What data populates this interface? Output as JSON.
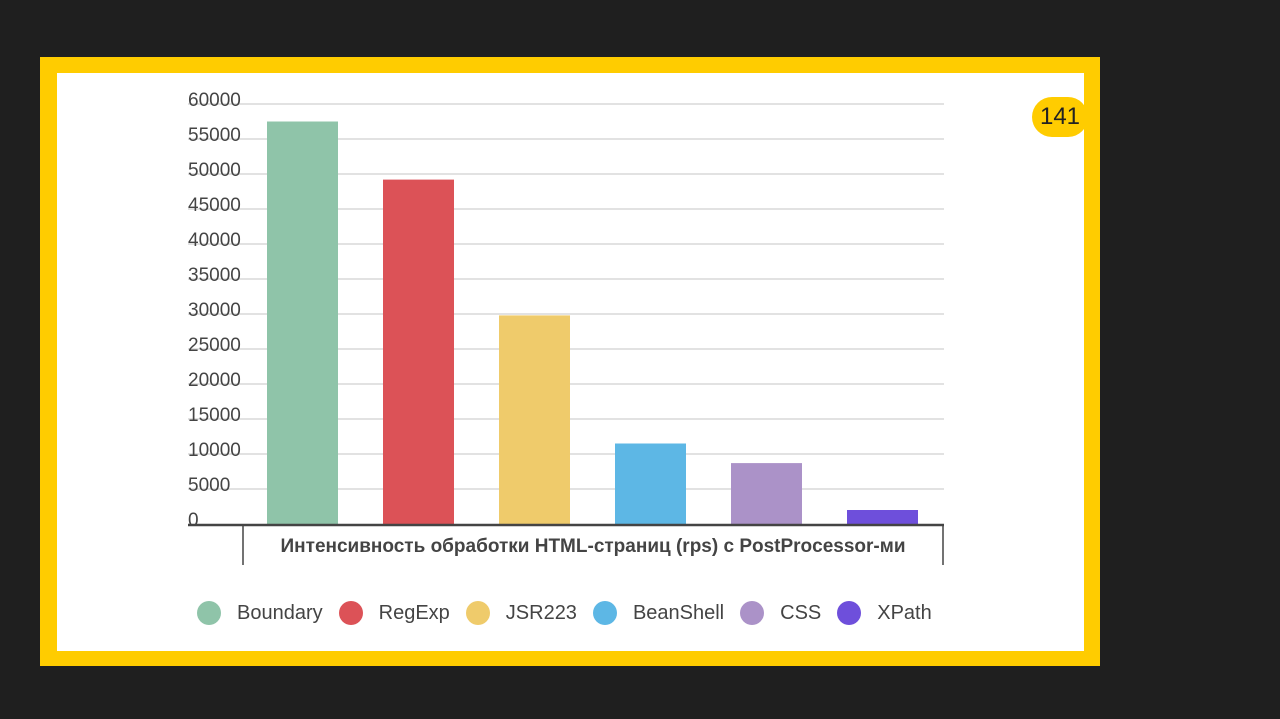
{
  "page_number": "141",
  "chart_data": {
    "type": "bar",
    "xlabel": "Интенсивность обработки HTML-страниц (rps) с PostProcessor-ми",
    "ylim": [
      0,
      60000
    ],
    "yticks": [
      0,
      5000,
      10000,
      15000,
      20000,
      25000,
      30000,
      35000,
      40000,
      45000,
      50000,
      55000,
      60000
    ],
    "grid": true,
    "legend_position": "bottom",
    "series": [
      {
        "name": "Boundary",
        "values": [
          57500
        ],
        "color": "#8fc4a9"
      },
      {
        "name": "RegExp",
        "values": [
          49200
        ],
        "color": "#dc5257"
      },
      {
        "name": "JSR223",
        "values": [
          29800
        ],
        "color": "#efcb6b"
      },
      {
        "name": "BeanShell",
        "values": [
          11500
        ],
        "color": "#5db7e5"
      },
      {
        "name": "CSS",
        "values": [
          8700
        ],
        "color": "#ab92c8"
      },
      {
        "name": "XPath",
        "values": [
          2000
        ],
        "color": "#6e4fdb"
      }
    ]
  }
}
